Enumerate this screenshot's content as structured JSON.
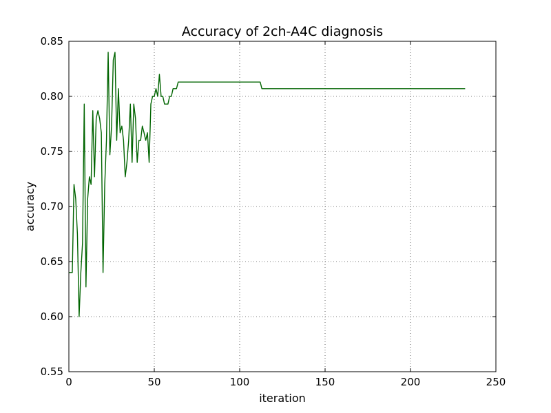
{
  "chart_data": {
    "type": "line",
    "title": "Accuracy of 2ch-A4C diagnosis",
    "xlabel": "iteration",
    "ylabel": "accuracy",
    "xlim": [
      0,
      250
    ],
    "ylim": [
      0.55,
      0.85
    ],
    "x_ticks": [
      "0",
      "50",
      "100",
      "150",
      "200",
      "250"
    ],
    "y_ticks": [
      "0.55",
      "0.60",
      "0.65",
      "0.70",
      "0.75",
      "0.80",
      "0.85"
    ],
    "grid": true,
    "series": [
      {
        "color": "#006400",
        "x": [
          0,
          2,
          3,
          4,
          5,
          6,
          7,
          8,
          9,
          10,
          11,
          12,
          13,
          14,
          15,
          16,
          17,
          18,
          19,
          20,
          21,
          22,
          23,
          24,
          25,
          26,
          27,
          28,
          29,
          30,
          31,
          32,
          33,
          34,
          35,
          36,
          37,
          38,
          39,
          40,
          41,
          42,
          43,
          44,
          45,
          46,
          47,
          48,
          49,
          50,
          51,
          52,
          53,
          54,
          55,
          56,
          57,
          58,
          59,
          60,
          61,
          62,
          63,
          64,
          65,
          66,
          100,
          112,
          113,
          232
        ],
        "y": [
          0.64,
          0.64,
          0.72,
          0.707,
          0.675,
          0.6,
          0.64,
          0.667,
          0.793,
          0.627,
          0.707,
          0.727,
          0.72,
          0.787,
          0.727,
          0.78,
          0.787,
          0.78,
          0.767,
          0.64,
          0.72,
          0.76,
          0.84,
          0.747,
          0.773,
          0.833,
          0.84,
          0.76,
          0.807,
          0.767,
          0.773,
          0.76,
          0.727,
          0.74,
          0.76,
          0.793,
          0.74,
          0.793,
          0.78,
          0.74,
          0.76,
          0.76,
          0.773,
          0.767,
          0.76,
          0.767,
          0.74,
          0.793,
          0.8,
          0.8,
          0.807,
          0.8,
          0.82,
          0.8,
          0.8,
          0.793,
          0.793,
          0.793,
          0.8,
          0.8,
          0.807,
          0.807,
          0.807,
          0.813,
          0.813,
          0.813,
          0.813,
          0.813,
          0.807,
          0.807
        ]
      }
    ]
  }
}
